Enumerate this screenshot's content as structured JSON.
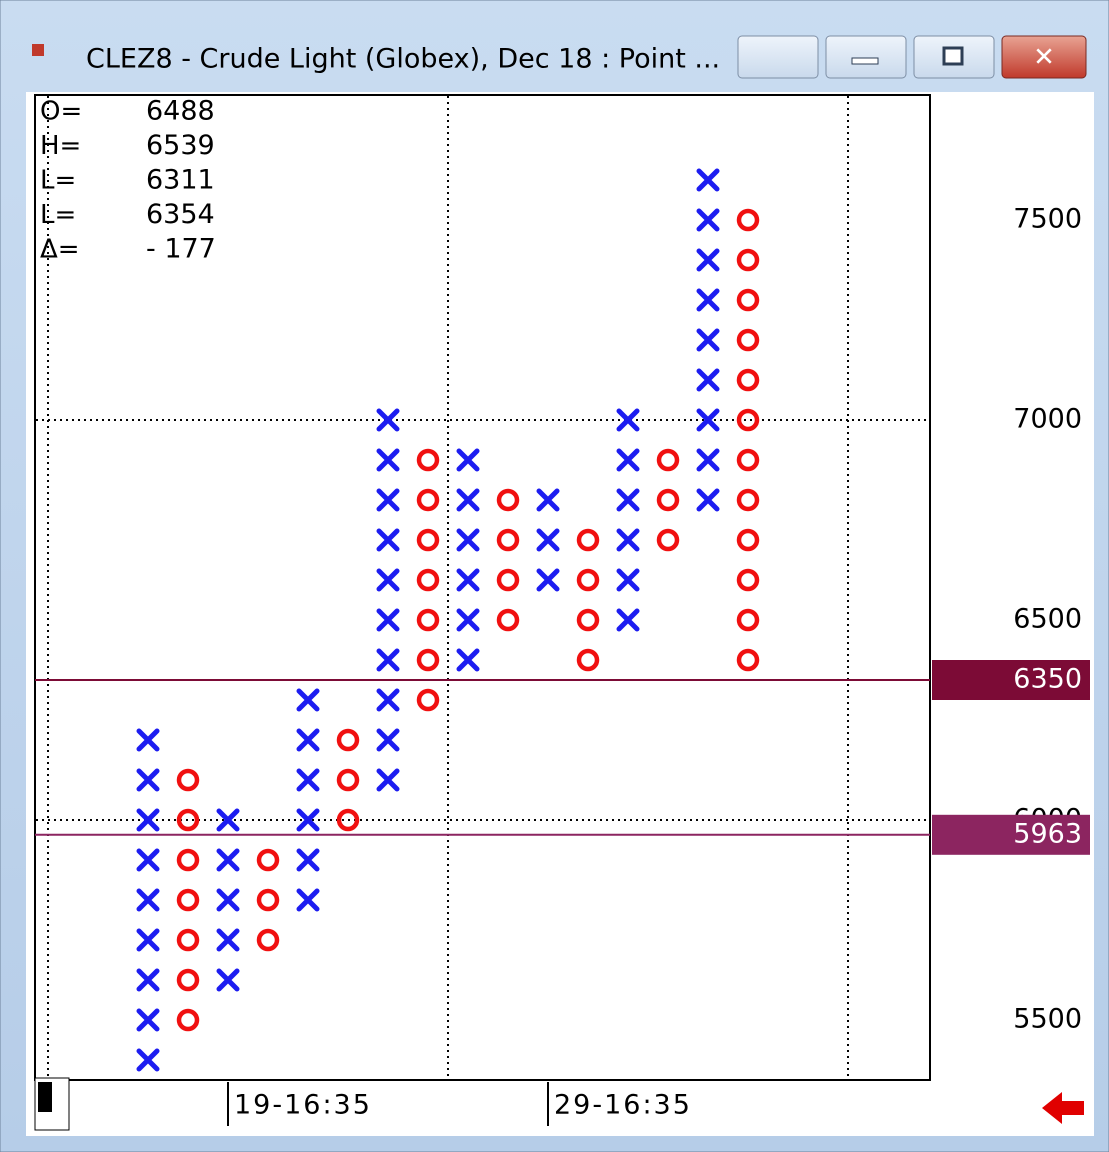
{
  "window": {
    "title": "CLEZ8 - Crude Light (Globex), Dec 18 : Point ..."
  },
  "chart_data": {
    "type": "point_and_figure",
    "box_size": 100,
    "ylim": [
      5350,
      7812.5
    ],
    "yticks": [
      5500,
      6000,
      6500,
      7000,
      7500
    ],
    "grid": true,
    "x_color": "#1c1cf0",
    "o_color": "#f01010",
    "columns": [
      {
        "kind": "X",
        "high": 6200,
        "low": 5400
      },
      {
        "kind": "O",
        "high": 6100,
        "low": 5500
      },
      {
        "kind": "X",
        "high": 6000,
        "low": 5600
      },
      {
        "kind": "O",
        "high": 5900,
        "low": 5700
      },
      {
        "kind": "X",
        "high": 6300,
        "low": 5800
      },
      {
        "kind": "O",
        "high": 6200,
        "low": 6000
      },
      {
        "kind": "X",
        "high": 7000,
        "low": 6100
      },
      {
        "kind": "O",
        "high": 6900,
        "low": 6300
      },
      {
        "kind": "X",
        "high": 6900,
        "low": 6400
      },
      {
        "kind": "O",
        "high": 6800,
        "low": 6500
      },
      {
        "kind": "X",
        "high": 6800,
        "low": 6600
      },
      {
        "kind": "O",
        "high": 6700,
        "low": 6400
      },
      {
        "kind": "X",
        "high": 7000,
        "low": 6500
      },
      {
        "kind": "O",
        "high": 6900,
        "low": 6700
      },
      {
        "kind": "X",
        "high": 7600,
        "low": 6800
      },
      {
        "kind": "O",
        "high": 7500,
        "low": 6400
      }
    ],
    "stats": [
      {
        "label": "O=",
        "value": 6488
      },
      {
        "label": "H=",
        "value": 6539
      },
      {
        "label": "L=",
        "value": 6311
      },
      {
        "label": "L=",
        "value": 6354
      },
      {
        "label": "Δ=",
        "value": -177,
        "value_label": "- 177"
      }
    ],
    "price_levels": [
      {
        "value": 6350,
        "color": "#7c0b36"
      },
      {
        "value": 5963,
        "color": "#8c2560"
      }
    ],
    "time_labels": [
      {
        "label": "19-16:35",
        "column": 2
      },
      {
        "label": "29-16:35",
        "column": 10
      }
    ]
  }
}
